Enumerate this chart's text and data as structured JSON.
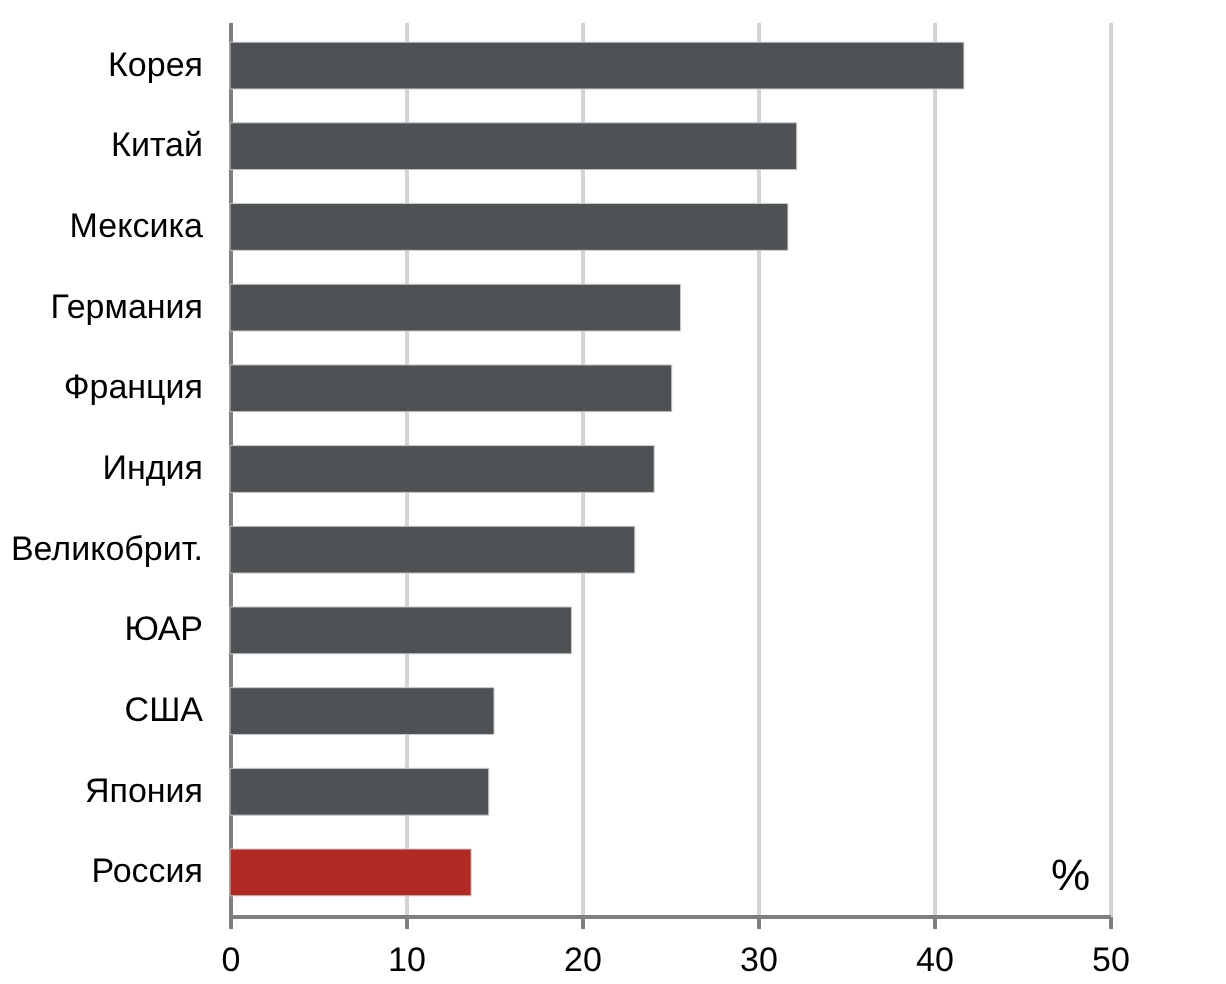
{
  "chart_data": {
    "type": "bar",
    "orientation": "horizontal",
    "categories": [
      "Корея",
      "Китай",
      "Мексика",
      "Германия",
      "Франция",
      "Индия",
      "Великобрит.",
      "ЮАР",
      "США",
      "Япония",
      "Россия"
    ],
    "values": [
      41.7,
      32.2,
      31.7,
      25.6,
      25.1,
      24.1,
      23.0,
      19.4,
      15.0,
      14.7,
      13.7
    ],
    "colors": [
      "#4f5255",
      "#4f5255",
      "#4f5255",
      "#4f5255",
      "#4f5255",
      "#4f5255",
      "#4f5255",
      "#4f5255",
      "#4f5255",
      "#4f5255",
      "#b02a24"
    ],
    "xlim": [
      0,
      50
    ],
    "xticks": [
      0,
      10,
      20,
      30,
      40,
      50
    ],
    "grid": "x",
    "annotations": [
      "%"
    ]
  }
}
